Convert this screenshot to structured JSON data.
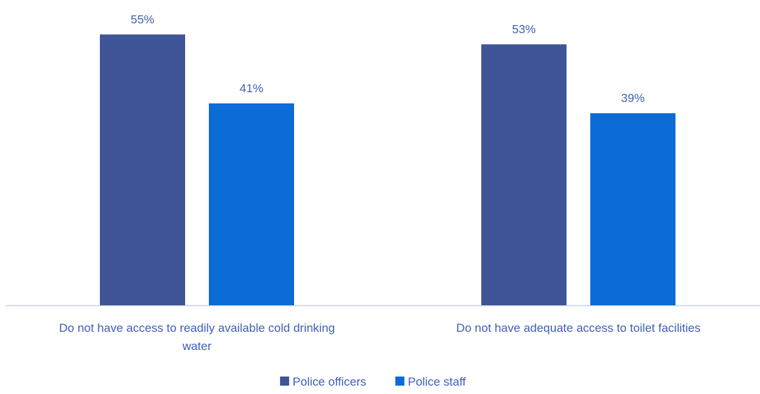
{
  "chart_data": {
    "type": "bar",
    "categories": [
      "Do not have access to readily available cold drinking water",
      "Do not have adequate access to toilet facilities"
    ],
    "category_lines": [
      [
        "Do not have access to readily available cold drinking",
        "water"
      ],
      [
        "Do not have adequate access to toilet facilities"
      ]
    ],
    "series": [
      {
        "name": "Police officers",
        "values": [
          55,
          53
        ],
        "labels": [
          "55%",
          "53%"
        ],
        "color": "#3f5597"
      },
      {
        "name": "Police staff",
        "values": [
          41,
          39
        ],
        "labels": [
          "41%",
          "39%"
        ],
        "color": "#0b6cd8"
      }
    ],
    "unit": "%",
    "ylim": [
      0,
      62
    ],
    "grid": false,
    "legend_position": "bottom",
    "colors": {
      "label_text": "#3f5fb5",
      "axis": "#c9d1e3"
    }
  }
}
